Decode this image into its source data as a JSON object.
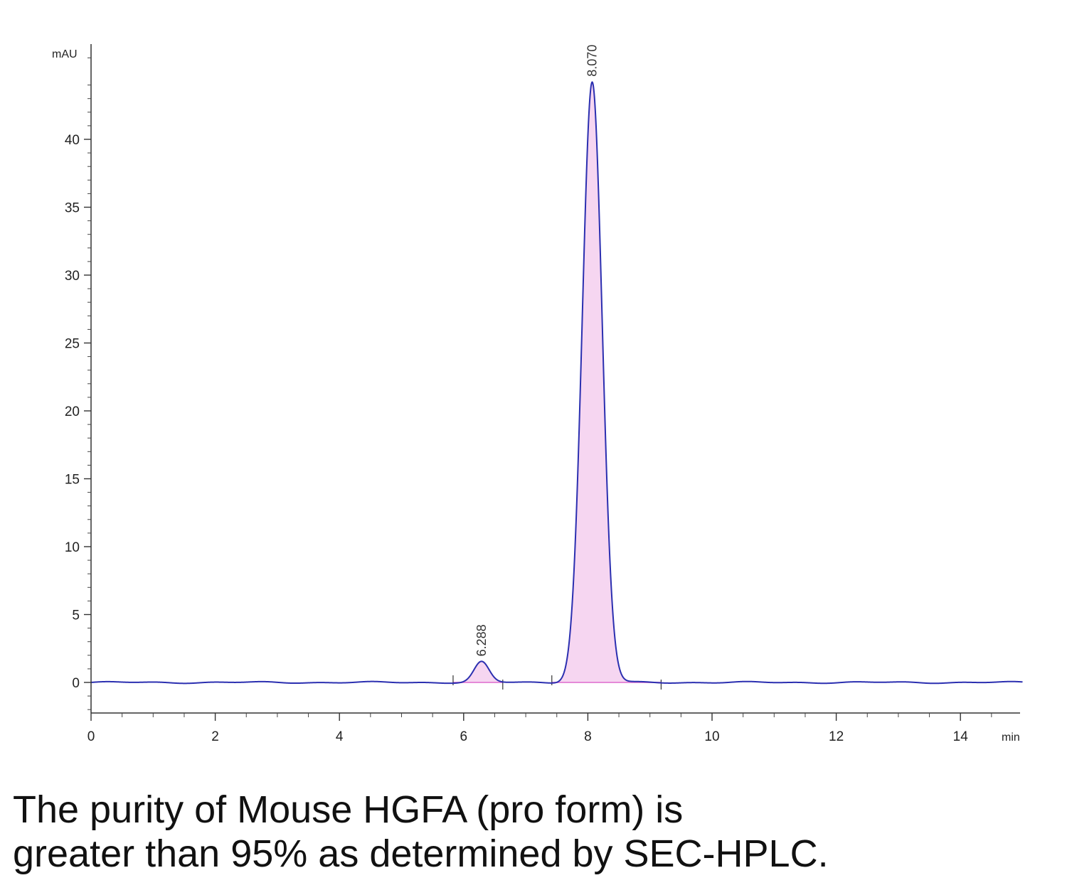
{
  "chart_data": {
    "type": "line",
    "title": "",
    "xlabel": "min",
    "ylabel": "mAU",
    "xlim": [
      0,
      15
    ],
    "ylim": [
      -2,
      47
    ],
    "x_ticks": [
      0,
      2,
      4,
      6,
      8,
      10,
      12,
      14
    ],
    "y_ticks": [
      0,
      5,
      10,
      15,
      20,
      25,
      30,
      35,
      40
    ],
    "grid": false,
    "legend": "none",
    "line_color": "#2b2fb0",
    "baseline_fill_color": "#e58ad8",
    "peaks": [
      {
        "label": "6.288",
        "rt": 6.288,
        "height": 1.5,
        "sigma": 0.12
      },
      {
        "label": "8.070",
        "rt": 8.07,
        "height": 44.2,
        "sigma": 0.16
      }
    ],
    "integration_regions": [
      [
        5.83,
        6.63
      ],
      [
        7.42,
        9.18
      ]
    ]
  },
  "caption": {
    "line1": "The purity of Mouse HGFA (pro form) is",
    "line2": "greater than 95% as determined by SEC-HPLC."
  }
}
